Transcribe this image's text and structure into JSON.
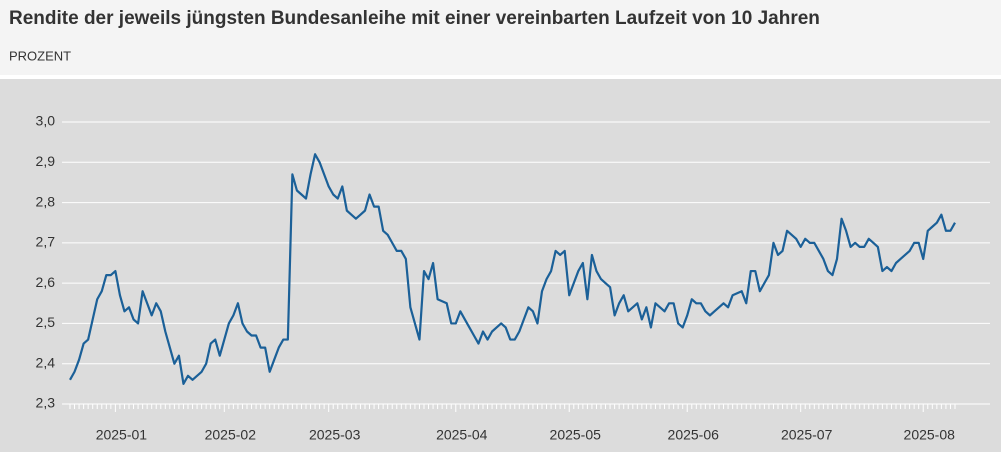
{
  "chart_data": {
    "type": "line",
    "title": "Rendite der jeweils jüngsten Bundesanleihe mit einer vereinbarten Laufzeit von 10 Jahren",
    "subtitle": "PROZENT",
    "categories": [
      null,
      null,
      null,
      null,
      null,
      null,
      null,
      null,
      null,
      null,
      "2025-01",
      null,
      null,
      null,
      null,
      null,
      null,
      null,
      null,
      null,
      null,
      null,
      null,
      null,
      null,
      null,
      null,
      null,
      null,
      null,
      null,
      null,
      null,
      null,
      "2025-02",
      null,
      null,
      null,
      null,
      null,
      null,
      null,
      null,
      null,
      null,
      null,
      null,
      null,
      null,
      null,
      null,
      null,
      null,
      null,
      null,
      null,
      null,
      "2025-03",
      null,
      null,
      null,
      null,
      null,
      null,
      null,
      null,
      null,
      null,
      null,
      null,
      null,
      null,
      null,
      null,
      null,
      null,
      null,
      null,
      null,
      null,
      null,
      null,
      null,
      null,
      null,
      "2025-04",
      null,
      null,
      null,
      null,
      null,
      null,
      null,
      null,
      null,
      null,
      null,
      null,
      null,
      null,
      null,
      null,
      null,
      null,
      null,
      null,
      null,
      null,
      null,
      null,
      "2025-05",
      null,
      null,
      null,
      null,
      null,
      null,
      null,
      null,
      null,
      null,
      null,
      null,
      null,
      null,
      null,
      null,
      null,
      null,
      null,
      null,
      null,
      null,
      null,
      null,
      null,
      "2025-06",
      null,
      null,
      null,
      null,
      null,
      null,
      null,
      null,
      null,
      null,
      null,
      null,
      null,
      null,
      null,
      null,
      null,
      null,
      null,
      null,
      null,
      null,
      null,
      null,
      "2025-07",
      null,
      null,
      null,
      null,
      null,
      null,
      null,
      null,
      null,
      null,
      null,
      null,
      null,
      null,
      null,
      null,
      null,
      null,
      null,
      null,
      null,
      null,
      null,
      null,
      null,
      null,
      "2025-08",
      null,
      null,
      null,
      null,
      null,
      null,
      null
    ],
    "series": [
      {
        "name": "Rendite",
        "color": "#1b6098",
        "values": [
          2.36,
          2.38,
          2.41,
          2.45,
          2.46,
          2.51,
          2.56,
          2.58,
          2.62,
          2.62,
          2.63,
          2.57,
          2.53,
          2.54,
          2.51,
          2.5,
          2.58,
          2.55,
          2.52,
          2.55,
          2.53,
          2.48,
          2.44,
          2.4,
          2.42,
          2.35,
          2.37,
          2.36,
          2.37,
          2.38,
          2.4,
          2.45,
          2.46,
          2.42,
          2.46,
          2.5,
          2.52,
          2.55,
          2.5,
          2.48,
          2.47,
          2.47,
          2.44,
          2.44,
          2.38,
          2.41,
          2.44,
          2.46,
          2.46,
          2.87,
          2.83,
          2.82,
          2.81,
          2.87,
          2.92,
          2.9,
          2.87,
          2.84,
          2.82,
          2.81,
          2.84,
          2.78,
          2.77,
          2.76,
          2.77,
          2.78,
          2.82,
          2.79,
          2.79,
          2.73,
          2.72,
          2.7,
          2.68,
          2.68,
          2.66,
          2.54,
          2.5,
          2.46,
          2.63,
          2.61,
          2.65,
          2.56,
          2.555,
          2.55,
          2.5,
          2.5,
          2.53,
          2.51,
          2.49,
          2.47,
          2.45,
          2.48,
          2.46,
          2.48,
          2.49,
          2.5,
          2.49,
          2.46,
          2.46,
          2.48,
          2.51,
          2.54,
          2.53,
          2.5,
          2.58,
          2.61,
          2.63,
          2.68,
          2.67,
          2.68,
          2.57,
          2.6,
          2.63,
          2.65,
          2.56,
          2.67,
          2.63,
          2.61,
          2.6,
          2.59,
          2.52,
          2.55,
          2.57,
          2.53,
          2.54,
          2.55,
          2.51,
          2.54,
          2.49,
          2.55,
          2.54,
          2.53,
          2.55,
          2.55,
          2.5,
          2.49,
          2.52,
          2.56,
          2.55,
          2.55,
          2.53,
          2.52,
          2.53,
          2.54,
          2.55,
          2.54,
          2.57,
          2.575,
          2.58,
          2.55,
          2.63,
          2.63,
          2.58,
          2.6,
          2.62,
          2.7,
          2.67,
          2.68,
          2.73,
          2.72,
          2.71,
          2.69,
          2.71,
          2.7,
          2.7,
          2.68,
          2.66,
          2.63,
          2.62,
          2.66,
          2.76,
          2.73,
          2.69,
          2.7,
          2.69,
          2.69,
          2.71,
          2.7,
          2.69,
          2.63,
          2.64,
          2.63,
          2.65,
          2.66,
          2.67,
          2.68,
          2.7,
          2.7,
          2.66,
          2.73,
          2.74,
          2.75,
          2.77,
          2.73,
          2.73,
          2.75
        ]
      }
    ],
    "ylim": [
      2.3,
      3.0
    ],
    "yticks": [
      {
        "value": 2.3,
        "label": "2,3"
      },
      {
        "value": 2.4,
        "label": "2,4"
      },
      {
        "value": 2.5,
        "label": "2,5"
      },
      {
        "value": 2.6,
        "label": "2,6"
      },
      {
        "value": 2.7,
        "label": "2,7"
      },
      {
        "value": 2.8,
        "label": "2,8"
      },
      {
        "value": 2.9,
        "label": "2,9"
      },
      {
        "value": 3.0,
        "label": "3,0"
      }
    ],
    "grid": true
  }
}
